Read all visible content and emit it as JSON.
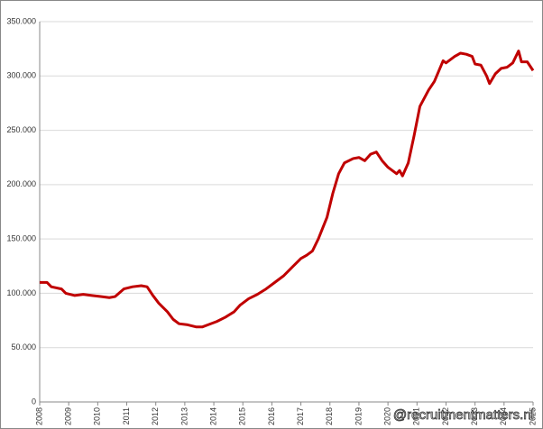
{
  "chart_data": {
    "type": "line",
    "watermark": "@recruitmentmatters.nl",
    "x": [
      2008.0,
      2008.25,
      2008.4,
      2008.75,
      2008.9,
      2009.2,
      2009.5,
      2009.8,
      2010.1,
      2010.4,
      2010.6,
      2010.9,
      2011.2,
      2011.5,
      2011.7,
      2011.9,
      2012.1,
      2012.4,
      2012.6,
      2012.8,
      2013.1,
      2013.4,
      2013.6,
      2013.8,
      2014.1,
      2014.4,
      2014.7,
      2014.9,
      2015.2,
      2015.5,
      2015.8,
      2016.1,
      2016.4,
      2016.7,
      2017.0,
      2017.2,
      2017.4,
      2017.6,
      2017.9,
      2018.1,
      2018.3,
      2018.5,
      2018.8,
      2019.0,
      2019.2,
      2019.4,
      2019.6,
      2019.8,
      2020.0,
      2020.3,
      2020.4,
      2020.5,
      2020.7,
      2020.9,
      2021.1,
      2021.4,
      2021.6,
      2021.9,
      2022.0,
      2022.3,
      2022.5,
      2022.7,
      2022.9,
      2023.0,
      2023.2,
      2023.4,
      2023.5,
      2023.7,
      2023.9,
      2024.1,
      2024.3,
      2024.5,
      2024.6,
      2024.8,
      2025.0
    ],
    "series": [
      {
        "color": "#c00000",
        "values": [
          110000,
          110000,
          106000,
          104000,
          100000,
          98000,
          99000,
          98000,
          97000,
          96000,
          97000,
          104000,
          106000,
          107000,
          106000,
          98000,
          91000,
          83000,
          76000,
          72000,
          71000,
          69000,
          69000,
          71000,
          74000,
          78000,
          83000,
          89000,
          95000,
          99000,
          104000,
          110000,
          116000,
          124000,
          132000,
          135000,
          139000,
          150000,
          170000,
          192000,
          210000,
          220000,
          224000,
          225000,
          222000,
          228000,
          230000,
          222000,
          216000,
          210000,
          213000,
          208000,
          220000,
          245000,
          272000,
          287000,
          295000,
          314000,
          312000,
          318000,
          321000,
          320000,
          318000,
          311000,
          310000,
          300000,
          293000,
          302000,
          307000,
          308000,
          312000,
          323000,
          313000,
          313000,
          305000
        ]
      }
    ],
    "xlim": [
      2008,
      2025
    ],
    "xticks": [
      2008,
      2009,
      2010,
      2011,
      2012,
      2013,
      2014,
      2015,
      2016,
      2017,
      2018,
      2019,
      2020,
      2021,
      2022,
      2023,
      2024,
      2025
    ],
    "ylim": [
      0,
      350000
    ],
    "yticks": [
      0,
      {
        "value": 50000,
        "label": "50.000"
      },
      {
        "value": 100000,
        "label": "100.000"
      },
      {
        "value": 150000,
        "label": "150.000"
      },
      {
        "value": 200000,
        "label": "200.000"
      },
      {
        "value": 250000,
        "label": "250.000"
      },
      {
        "value": 300000,
        "label": "300.000"
      },
      {
        "value": 350000,
        "label": "350.000"
      }
    ],
    "grid": true
  }
}
